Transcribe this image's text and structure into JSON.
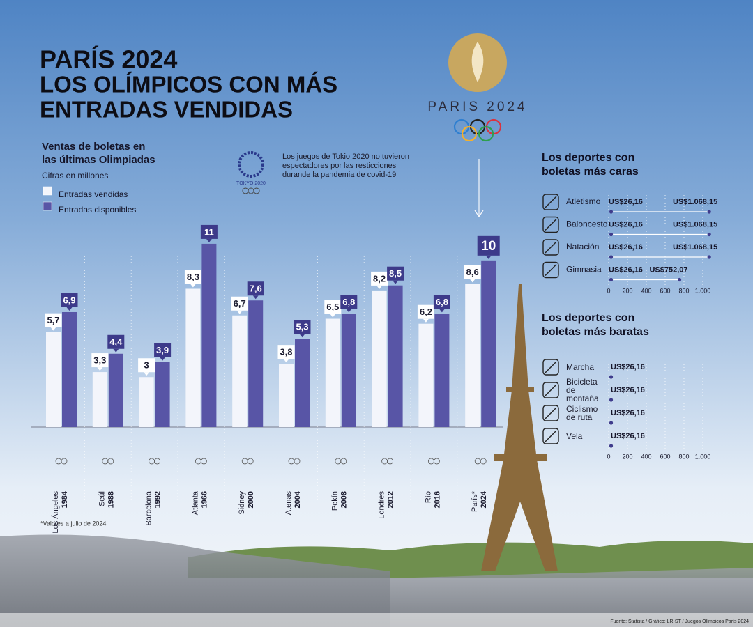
{
  "logo_text": "PARIS 2024",
  "tokyo_logo_text": "TOKYO 2020",
  "source": "Fuente: Statista / Gráfico: LR-ST / Juegos Olímpicos París 2024",
  "chart_data": [
    {
      "type": "bar",
      "title": [
        "PARÍS 2024",
        "LOS OLÍMPICOS CON MÁS",
        "ENTRADAS VENDIDAS"
      ],
      "subtitle": [
        "Ventas de boletas en",
        "las últimas Olimpiadas"
      ],
      "unit_note": "Cifras en millones",
      "annotation": "Los juegos de Tokio 2020 no tuvieron espectadores por las resticciones durande la pandemia de covid-19",
      "footnote": "*Valores a julio de 2024",
      "categories": [
        "Los Ángeles",
        "Seúl",
        "Barcelona",
        "Atlanta",
        "Sidney",
        "Atenas",
        "Pekín",
        "Londres",
        "Río",
        "París*"
      ],
      "years": [
        "1984",
        "1988",
        "1992",
        "1966",
        "2000",
        "2004",
        "2008",
        "2012",
        "2016",
        "2024"
      ],
      "series": [
        {
          "name": "Entradas vendidas",
          "color": "#f3f5fb",
          "values": [
            5.7,
            3.3,
            3,
            8.3,
            6.7,
            3.8,
            6.5,
            8.2,
            6.2,
            8.6
          ],
          "value_labels": [
            "5,7",
            "3,3",
            "3",
            "8,3",
            "6,7",
            "3,8",
            "6,5",
            "8,2",
            "6,2",
            "8,6"
          ]
        },
        {
          "name": "Entradas disponibles",
          "color": "#5855a6",
          "values": [
            6.9,
            4.4,
            3.9,
            11,
            7.6,
            5.3,
            6.8,
            8.5,
            6.8,
            10
          ],
          "value_labels": [
            "6,9",
            "4,4",
            "3,9",
            "11",
            "7,6",
            "5,3",
            "6,8",
            "8,5",
            "6,8",
            "10"
          ]
        }
      ],
      "ylim": [
        0,
        12
      ]
    },
    {
      "type": "range",
      "title": [
        "Los deportes con",
        "boletas más caras"
      ],
      "categories": [
        "Atletismo",
        "Baloncesto",
        "Natación",
        "Gimnasia"
      ],
      "lows": [
        26.16,
        26.16,
        26.16,
        26.16
      ],
      "low_labels": [
        "US$26,16",
        "US$26,16",
        "US$26,16",
        "US$26,16"
      ],
      "highs": [
        1068.15,
        1068.15,
        1068.15,
        752.07
      ],
      "high_labels": [
        "US$1.068,15",
        "US$1.068,15",
        "US$1.068,15",
        "US$752,07"
      ],
      "color": "#3f3c8c",
      "xlim": [
        0,
        1100
      ],
      "xticks": [
        0,
        200,
        400,
        600,
        800,
        {
          "value": 1000,
          "label": "1.000"
        }
      ],
      "grid": true
    },
    {
      "type": "dot",
      "title": [
        "Los deportes con",
        "boletas más baratas"
      ],
      "categories": [
        "Marcha",
        "Bicicleta de montaña",
        "Ciclismo de ruta",
        "Vela"
      ],
      "values": [
        26.16,
        26.16,
        26.16,
        26.16
      ],
      "value_labels": [
        "US$26,16",
        "US$26,16",
        "US$26,16",
        "US$26,16"
      ],
      "color": "#3f3c8c",
      "xlim": [
        0,
        1100
      ],
      "xticks": [
        0,
        200,
        400,
        600,
        800,
        {
          "value": 1000,
          "label": "1.000"
        }
      ],
      "grid": true
    }
  ]
}
